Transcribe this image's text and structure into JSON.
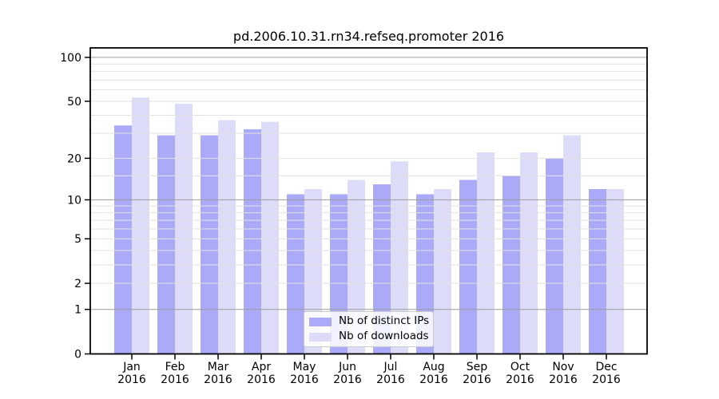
{
  "title": "pd.2006.10.31.rn34.refseq.promoter 2016",
  "colors": {
    "distinct_ips_bar": "#aaaaf8",
    "downloads_bar": "#dcdcf8",
    "grid_major": "#9c9c9c",
    "grid_minor": "#e2e2e2",
    "axis": "#000000",
    "legend_border": "#cccccc",
    "legend_background": "rgba(255,255,255,0.85)"
  },
  "legend": {
    "position": "lower center",
    "entries": [
      "Nb of distinct IPs",
      "Nb of downloads"
    ]
  },
  "chart_data": {
    "type": "bar",
    "title": "pd.2006.10.31.rn34.refseq.promoter 2016",
    "categories": [
      {
        "month": "Jan",
        "year": "2016"
      },
      {
        "month": "Feb",
        "year": "2016"
      },
      {
        "month": "Mar",
        "year": "2016"
      },
      {
        "month": "Apr",
        "year": "2016"
      },
      {
        "month": "May",
        "year": "2016"
      },
      {
        "month": "Jun",
        "year": "2016"
      },
      {
        "month": "Jul",
        "year": "2016"
      },
      {
        "month": "Aug",
        "year": "2016"
      },
      {
        "month": "Sep",
        "year": "2016"
      },
      {
        "month": "Oct",
        "year": "2016"
      },
      {
        "month": "Nov",
        "year": "2016"
      },
      {
        "month": "Dec",
        "year": "2016"
      }
    ],
    "series": [
      {
        "name": "Nb of distinct IPs",
        "color": "#aaaaf8",
        "values": [
          34,
          29,
          29,
          32,
          11,
          11,
          13,
          11,
          14,
          15,
          20,
          12
        ]
      },
      {
        "name": "Nb of downloads",
        "color": "#dcdcf8",
        "values": [
          53,
          48,
          37,
          36,
          12,
          14,
          19,
          12,
          22,
          22,
          29,
          12
        ]
      }
    ],
    "xlabel": "",
    "ylabel": "",
    "yscale": "log1p",
    "ylim": [
      0,
      116
    ],
    "y_tick_values": [
      0,
      1,
      2,
      5,
      10,
      20,
      50,
      100
    ],
    "y_tick_labels": [
      "0",
      "1",
      "2",
      "5",
      "10",
      "20",
      "50",
      "100"
    ],
    "grid": {
      "on": true,
      "major_values": [
        1,
        10,
        100
      ],
      "minor_values": [
        2,
        3,
        4,
        5,
        6,
        7,
        8,
        9,
        15,
        20,
        30,
        40,
        50,
        60,
        70,
        80,
        90
      ]
    },
    "legend_position": "lower center"
  }
}
